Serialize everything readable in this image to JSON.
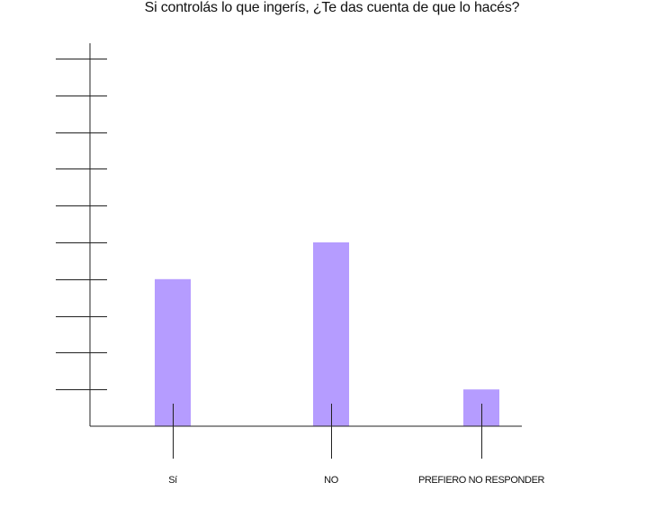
{
  "chart_data": {
    "type": "bar",
    "title": "Si controlás lo que ingerís, ¿Te das cuenta de que lo hacés?",
    "categories": [
      "Sí",
      "NO",
      "PREFIERO NO RESPONDER"
    ],
    "values": [
      4,
      5,
      1
    ],
    "ylim": [
      0,
      10
    ],
    "xlabel": "",
    "ylabel": "",
    "grid": false,
    "bar_color": "#b59cff",
    "axis_color": "#222222"
  }
}
